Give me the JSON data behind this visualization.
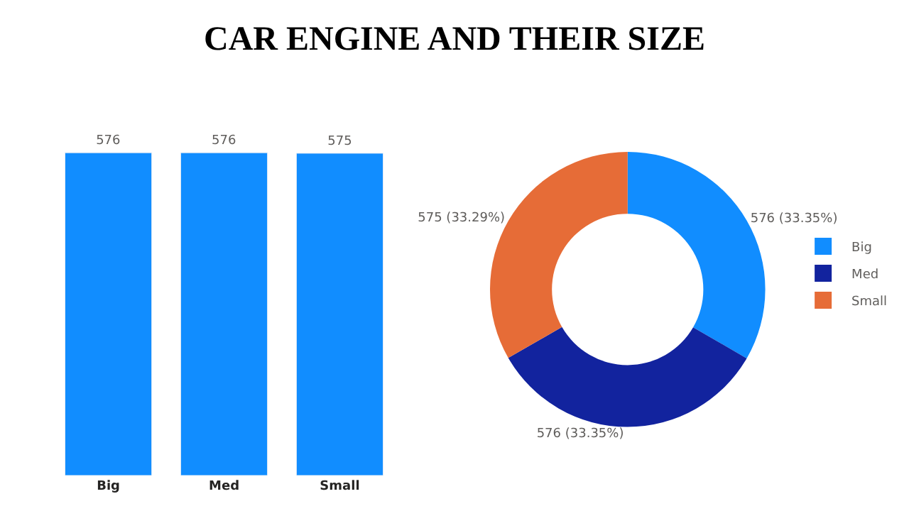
{
  "chart_data": [
    {
      "type": "bar",
      "title": "CAR ENGINE AND THEIR SIZE",
      "categories": [
        "Big",
        "Med",
        "Small"
      ],
      "values": [
        576,
        576,
        575
      ],
      "color": "#118dff",
      "data_labels": true,
      "legend": false
    },
    {
      "type": "donut",
      "categories": [
        "Big",
        "Med",
        "Small"
      ],
      "values": [
        576,
        576,
        575
      ],
      "colors": [
        "#118dff",
        "#12239e",
        "#e66c37"
      ],
      "value_labels": [
        "576 (33.35%)",
        "576 (33.35%)",
        "575 (33.29%)"
      ],
      "legend": "right"
    }
  ]
}
